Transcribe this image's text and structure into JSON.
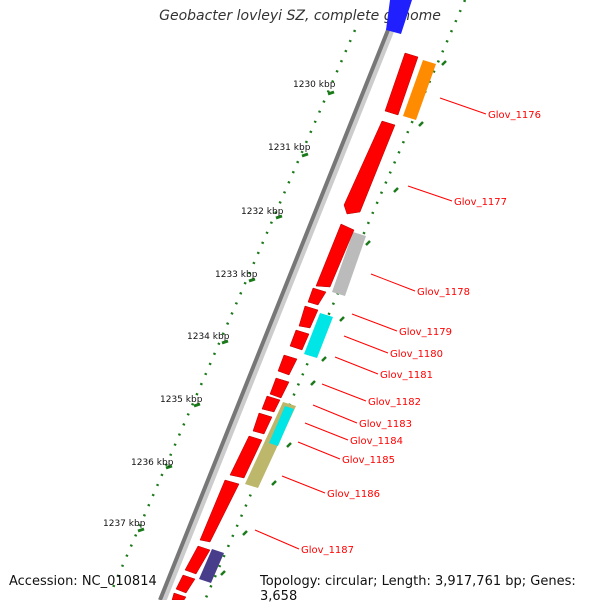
{
  "title": "Geobacter lovleyi SZ, complete genome",
  "accession": "Accession: NC_010814",
  "topology": "Topology: circular; Length: 3,917,761 bp; Genes: 3,658",
  "ruler": [
    {
      "label": "1230 kbp"
    },
    {
      "label": "1231 kbp"
    },
    {
      "label": "1232 kbp"
    },
    {
      "label": "1233 kbp"
    },
    {
      "label": "1234 kbp"
    },
    {
      "label": "1235 kbp"
    },
    {
      "label": "1236 kbp"
    },
    {
      "label": "1237 kbp"
    }
  ],
  "genes": [
    {
      "label": "Glov_1176",
      "color": "#ff0000"
    },
    {
      "label": "Glov_1177",
      "color": "#ff0000"
    },
    {
      "label": "Glov_1178",
      "color": "#ff0000"
    },
    {
      "label": "Glov_1179",
      "color": "#ff0000"
    },
    {
      "label": "Glov_1180",
      "color": "#ff0000"
    },
    {
      "label": "Glov_1181",
      "color": "#ff0000"
    },
    {
      "label": "Glov_1182",
      "color": "#ff0000"
    },
    {
      "label": "Glov_1183",
      "color": "#ff0000"
    },
    {
      "label": "Glov_1184",
      "color": "#ff0000"
    },
    {
      "label": "Glov_1185",
      "color": "#ff0000"
    },
    {
      "label": "Glov_1186",
      "color": "#ff0000"
    },
    {
      "label": "Glov_1187",
      "color": "#ff0000"
    }
  ],
  "colors": {
    "backbone": "#777777",
    "ticks": "#1a7a1a",
    "label_line": "#ff0000",
    "cog_orange": "#ff8c00",
    "cog_gray": "#bbbbbb",
    "cog_cyan": "#00e5e5",
    "cog_khaki": "#bdb76b",
    "cog_purple": "#483d8b",
    "cog_blue": "#2020ff"
  }
}
